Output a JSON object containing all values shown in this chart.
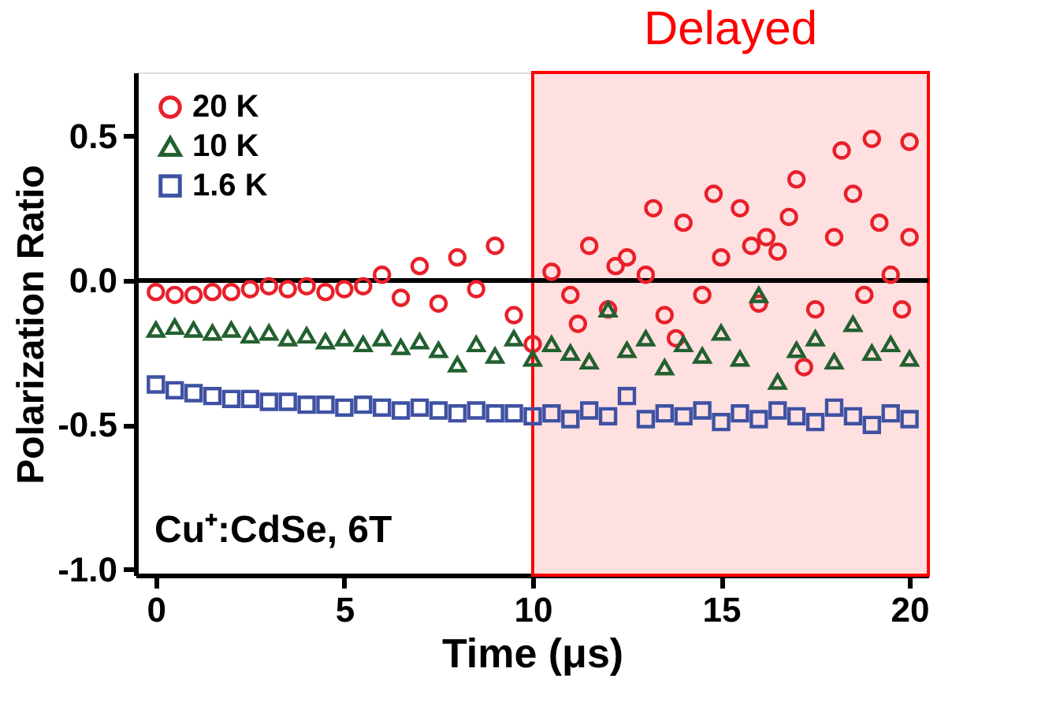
{
  "chart_data": {
    "type": "scatter",
    "xlabel": "Time (μs)",
    "ylabel": "Polarization Ratio",
    "xlim": [
      -0.54,
      20.5
    ],
    "ylim": [
      -1.02,
      0.72
    ],
    "xticks": [
      0,
      5,
      10,
      15,
      20
    ],
    "yticks": [
      {
        "value": -1.0,
        "label": "-1.0"
      },
      {
        "value": -0.5,
        "label": "-0.5"
      },
      {
        "value": 0.0,
        "label": "0.0"
      },
      {
        "value": 0.5,
        "label": "0.5"
      }
    ],
    "grid": false,
    "legend": "top left",
    "ref_lines": [
      {
        "axis": "y",
        "value": 0,
        "color": "#000000"
      }
    ],
    "bands": [
      {
        "axis": "x",
        "from": 10,
        "to": 20.5,
        "label": "Delayed",
        "color": "#ff0000"
      }
    ],
    "annotations": [
      "Cu⁺:CdSe, 6T"
    ],
    "series": [
      {
        "name": "20 K",
        "color": "#e8202a",
        "marker": "circle",
        "x": [
          0,
          0.5,
          1,
          1.5,
          2,
          2.5,
          3,
          3.5,
          4,
          4.5,
          5,
          5.5,
          6,
          6.5,
          7,
          7.5,
          8,
          8.5,
          9,
          9.5,
          10,
          10.5,
          11,
          11.5,
          12,
          12.5,
          13,
          13.5,
          14,
          14.5,
          15,
          15.5,
          16,
          16.5,
          17,
          17.5,
          18,
          18.5,
          19,
          19.5,
          20,
          12.2,
          13.2,
          14.8,
          15.8,
          16.8,
          17.2,
          18.2,
          19.2,
          19.8,
          20,
          11.2,
          13.8,
          16.2,
          18.8
        ],
        "values": [
          -0.04,
          -0.05,
          -0.05,
          -0.04,
          -0.04,
          -0.03,
          -0.02,
          -0.03,
          -0.02,
          -0.04,
          -0.03,
          -0.02,
          0.02,
          -0.06,
          0.05,
          -0.08,
          0.08,
          -0.03,
          0.12,
          -0.12,
          -0.22,
          0.03,
          -0.05,
          0.12,
          -0.1,
          0.08,
          0.02,
          -0.12,
          0.2,
          -0.05,
          0.08,
          0.25,
          -0.08,
          0.1,
          0.35,
          -0.1,
          0.15,
          0.3,
          0.49,
          0.02,
          0.48,
          0.05,
          0.25,
          0.3,
          0.12,
          0.22,
          -0.3,
          0.45,
          0.2,
          -0.1,
          0.15,
          -0.15,
          -0.2,
          0.15,
          -0.05
        ]
      },
      {
        "name": "10 K",
        "color": "#236030",
        "marker": "triangle",
        "x": [
          0,
          0.5,
          1,
          1.5,
          2,
          2.5,
          3,
          3.5,
          4,
          4.5,
          5,
          5.5,
          6,
          6.5,
          7,
          7.5,
          8,
          8.5,
          9,
          9.5,
          10,
          10.5,
          11,
          11.5,
          12,
          12.5,
          13,
          13.5,
          14,
          14.5,
          15,
          15.5,
          16,
          16.5,
          17,
          17.5,
          18,
          18.5,
          19,
          19.5,
          20
        ],
        "values": [
          -0.17,
          -0.16,
          -0.17,
          -0.18,
          -0.17,
          -0.19,
          -0.18,
          -0.2,
          -0.19,
          -0.21,
          -0.2,
          -0.22,
          -0.2,
          -0.23,
          -0.21,
          -0.24,
          -0.29,
          -0.22,
          -0.26,
          -0.2,
          -0.27,
          -0.22,
          -0.25,
          -0.28,
          -0.1,
          -0.24,
          -0.2,
          -0.3,
          -0.22,
          -0.26,
          -0.18,
          -0.27,
          -0.05,
          -0.35,
          -0.24,
          -0.2,
          -0.28,
          -0.15,
          -0.25,
          -0.22,
          -0.27
        ]
      },
      {
        "name": "1.6 K",
        "color": "#3f51a3",
        "marker": "square",
        "x": [
          0,
          0.5,
          1,
          1.5,
          2,
          2.5,
          3,
          3.5,
          4,
          4.5,
          5,
          5.5,
          6,
          6.5,
          7,
          7.5,
          8,
          8.5,
          9,
          9.5,
          10,
          10.5,
          11,
          11.5,
          12,
          12.5,
          13,
          13.5,
          14,
          14.5,
          15,
          15.5,
          16,
          16.5,
          17,
          17.5,
          18,
          18.5,
          19,
          19.5,
          20
        ],
        "values": [
          -0.36,
          -0.38,
          -0.39,
          -0.4,
          -0.41,
          -0.41,
          -0.42,
          -0.42,
          -0.43,
          -0.43,
          -0.44,
          -0.43,
          -0.44,
          -0.45,
          -0.44,
          -0.45,
          -0.46,
          -0.45,
          -0.46,
          -0.46,
          -0.47,
          -0.46,
          -0.48,
          -0.45,
          -0.47,
          -0.4,
          -0.48,
          -0.46,
          -0.47,
          -0.45,
          -0.49,
          -0.46,
          -0.48,
          -0.45,
          -0.47,
          -0.49,
          -0.44,
          -0.47,
          -0.5,
          -0.46,
          -0.48
        ]
      }
    ]
  }
}
